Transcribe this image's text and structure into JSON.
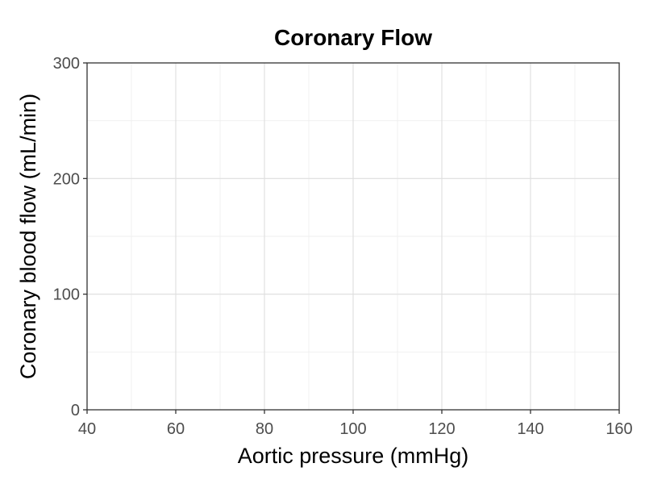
{
  "chart_data": {
    "type": "line",
    "title": "Coronary Flow",
    "xlabel": "Aortic pressure (mmHg)",
    "ylabel": "Coronary blood flow (mL/min)",
    "xlim": [
      40,
      160
    ],
    "ylim": [
      0,
      300
    ],
    "x_ticks": [
      40,
      60,
      80,
      100,
      120,
      140,
      160
    ],
    "y_ticks": [
      0,
      100,
      200,
      300
    ],
    "x_minor_ticks": [
      50,
      70,
      90,
      110,
      130,
      150
    ],
    "y_minor_ticks": [
      50,
      150,
      250
    ],
    "grid": true,
    "series": []
  }
}
